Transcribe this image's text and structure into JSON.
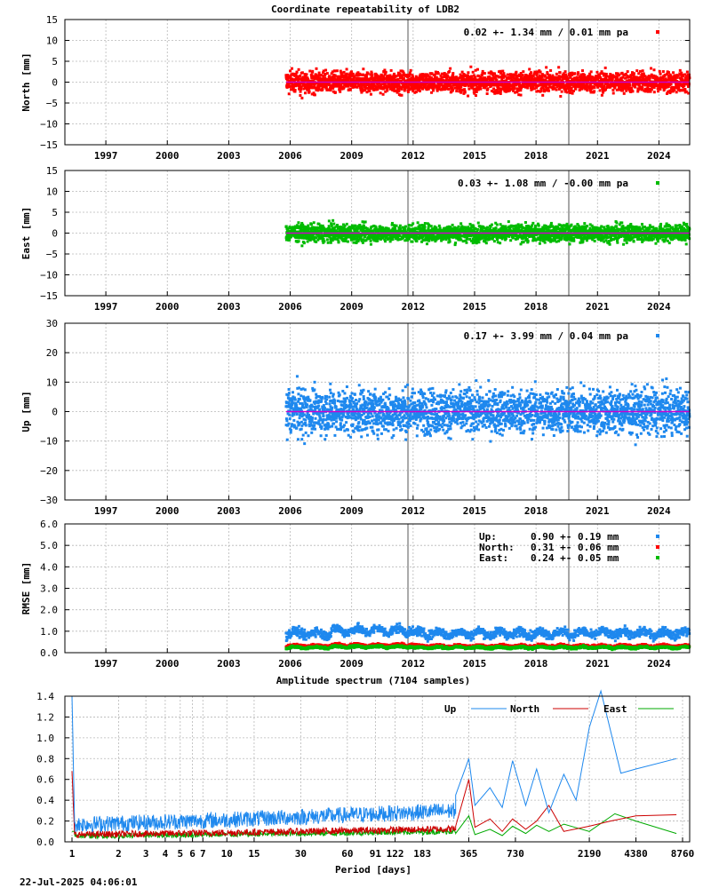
{
  "title": "Coordinate repeatability of LDB2",
  "timestamp": "22-Jul-2025 04:06:01",
  "colors": {
    "north": "#ff0000",
    "east": "#00bb00",
    "up": "#1e88ee",
    "mean_line": "#cc00cc",
    "event_line": "#a8a8a8"
  },
  "chart_data": [
    {
      "type": "scatter",
      "id": "north",
      "ylabel": "North [mm]",
      "ylim": [
        -15,
        15
      ],
      "yticks": [
        -15,
        -10,
        -5,
        0,
        5,
        10,
        15
      ],
      "ytick_labels": [
        "−15",
        "−10",
        "−5",
        "0",
        "5",
        "10",
        "15"
      ],
      "xlim": [
        1995,
        2025.5
      ],
      "xticks": [
        1997,
        2000,
        2003,
        2006,
        2009,
        2012,
        2015,
        2018,
        2021,
        2024
      ],
      "xtick_labels": [
        "1997",
        "2000",
        "2003",
        "2006",
        "2009",
        "2012",
        "2015",
        "2018",
        "2021",
        "2024"
      ],
      "data_start": 2005.8,
      "data_end": 2025.5,
      "noise_sigma_mm": 1.34,
      "event_lines": [
        2011.75,
        2019.6
      ],
      "legend": "0.02 +- 1.34 mm /  0.01 mm pa"
    },
    {
      "type": "scatter",
      "id": "east",
      "ylabel": "East [mm]",
      "ylim": [
        -15,
        15
      ],
      "yticks": [
        -15,
        -10,
        -5,
        0,
        5,
        10,
        15
      ],
      "ytick_labels": [
        "−15",
        "−10",
        "−5",
        "0",
        "5",
        "10",
        "15"
      ],
      "xlim": [
        1995,
        2025.5
      ],
      "xticks": [
        1997,
        2000,
        2003,
        2006,
        2009,
        2012,
        2015,
        2018,
        2021,
        2024
      ],
      "xtick_labels": [
        "1997",
        "2000",
        "2003",
        "2006",
        "2009",
        "2012",
        "2015",
        "2018",
        "2021",
        "2024"
      ],
      "data_start": 2005.8,
      "data_end": 2025.5,
      "noise_sigma_mm": 1.08,
      "event_lines": [
        2011.75,
        2019.6
      ],
      "legend": "0.03 +- 1.08 mm / -0.00 mm pa"
    },
    {
      "type": "scatter",
      "id": "up",
      "ylabel": "Up [mm]",
      "ylim": [
        -30,
        30
      ],
      "yticks": [
        -30,
        -20,
        -10,
        0,
        10,
        20,
        30
      ],
      "ytick_labels": [
        "−30",
        "−20",
        "−10",
        "0",
        "10",
        "20",
        "30"
      ],
      "xlim": [
        1995,
        2025.5
      ],
      "xticks": [
        1997,
        2000,
        2003,
        2006,
        2009,
        2012,
        2015,
        2018,
        2021,
        2024
      ],
      "xtick_labels": [
        "1997",
        "2000",
        "2003",
        "2006",
        "2009",
        "2012",
        "2015",
        "2018",
        "2021",
        "2024"
      ],
      "data_start": 2005.8,
      "data_end": 2025.5,
      "noise_sigma_mm": 3.99,
      "event_lines": [
        2011.75,
        2019.6
      ],
      "legend": "0.17 +- 3.99 mm /  0.04 mm pa"
    },
    {
      "type": "scatter",
      "id": "rmse",
      "ylabel": "RMSE [mm]",
      "ylim": [
        0,
        6
      ],
      "yticks": [
        0,
        1,
        2,
        3,
        4,
        5,
        6
      ],
      "ytick_labels": [
        "0.0",
        "1.0",
        "2.0",
        "3.0",
        "4.0",
        "5.0",
        "6.0"
      ],
      "xlim": [
        1995,
        2025.5
      ],
      "xticks": [
        1997,
        2000,
        2003,
        2006,
        2009,
        2012,
        2015,
        2018,
        2021,
        2024
      ],
      "xtick_labels": [
        "1997",
        "2000",
        "2003",
        "2006",
        "2009",
        "2012",
        "2015",
        "2018",
        "2021",
        "2024"
      ],
      "data_start": 2005.8,
      "data_end": 2025.5,
      "event_lines": [
        2011.75,
        2019.6
      ],
      "series": [
        {
          "name": "Up:",
          "value": "0.90 +- 0.19 mm",
          "mean": 0.9,
          "sigma": 0.19,
          "color": "#1e88ee"
        },
        {
          "name": "North:",
          "value": "0.31 +- 0.06 mm",
          "mean": 0.31,
          "sigma": 0.06,
          "color": "#ff0000"
        },
        {
          "name": "East:",
          "value": "0.24 +- 0.05 mm",
          "mean": 0.24,
          "sigma": 0.05,
          "color": "#00bb00"
        }
      ]
    },
    {
      "type": "line",
      "id": "spectrum",
      "title": "Amplitude spectrum (7104 samples)",
      "xlabel": "Period [days]",
      "xscale": "log",
      "xlim": [
        1,
        8760
      ],
      "xticks": [
        1,
        2,
        3,
        4,
        5,
        6,
        7,
        10,
        15,
        30,
        60,
        91,
        122,
        183,
        365,
        730,
        2190,
        4380,
        8760
      ],
      "xtick_labels": [
        "1",
        "2",
        "3",
        "4",
        "5",
        "6",
        "7",
        "10",
        "15",
        "30",
        "60",
        "91",
        "122",
        "183",
        "365",
        "730",
        "2190",
        "4380",
        "8760"
      ],
      "ylim": [
        0,
        1.4
      ],
      "yticks": [
        0,
        0.2,
        0.4,
        0.6,
        0.8,
        1.0,
        1.2,
        1.4
      ],
      "ytick_labels": [
        "0.0",
        "0.2",
        "0.4",
        "0.6",
        "0.8",
        "1.0",
        "1.2",
        "1.4"
      ],
      "legend": [
        "Up",
        "North",
        "East"
      ],
      "series": [
        {
          "name": "Up",
          "color": "#1e88ee",
          "x": [
            300,
            365,
            400,
            500,
            600,
            700,
            850,
            1000,
            1200,
            1500,
            1800,
            2190,
            2600,
            3500,
            4380,
            8000
          ],
          "y": [
            0.45,
            0.8,
            0.35,
            0.52,
            0.33,
            0.78,
            0.35,
            0.7,
            0.28,
            0.65,
            0.4,
            1.1,
            1.45,
            0.66,
            0.7,
            0.8
          ]
        },
        {
          "name": "North",
          "color": "#cc0000",
          "x": [
            300,
            365,
            400,
            500,
            600,
            700,
            850,
            1000,
            1200,
            1500,
            2190,
            3000,
            4380,
            8000
          ],
          "y": [
            0.15,
            0.6,
            0.14,
            0.22,
            0.1,
            0.22,
            0.12,
            0.2,
            0.35,
            0.1,
            0.15,
            0.2,
            0.25,
            0.26
          ]
        },
        {
          "name": "East",
          "color": "#00aa00",
          "x": [
            300,
            365,
            400,
            500,
            600,
            700,
            850,
            1000,
            1200,
            1500,
            2190,
            3200,
            4380,
            8000
          ],
          "y": [
            0.08,
            0.25,
            0.07,
            0.12,
            0.06,
            0.15,
            0.08,
            0.16,
            0.1,
            0.17,
            0.1,
            0.27,
            0.2,
            0.08
          ]
        }
      ]
    }
  ]
}
